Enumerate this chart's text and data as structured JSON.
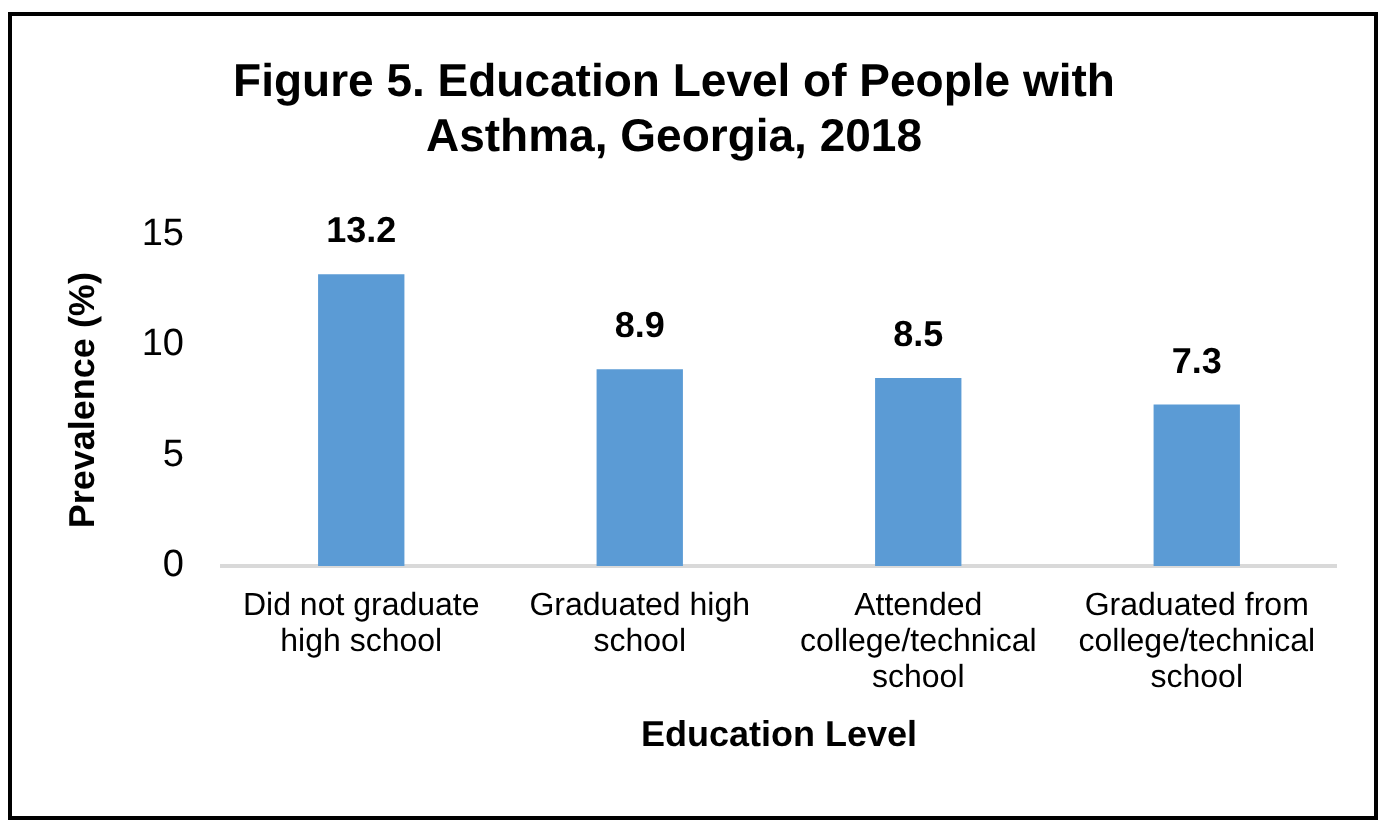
{
  "chart_data": {
    "type": "bar",
    "title": "Figure 5. Education Level of People with Asthma, Georgia, 2018",
    "xlabel": "Education Level",
    "ylabel": "Prevalence (%)",
    "categories": [
      "Did not graduate high school",
      "Graduated high school",
      "Attended college/technical school",
      "Graduated from college/technical school"
    ],
    "values": [
      13.2,
      8.9,
      8.5,
      7.3
    ],
    "color": "#5b9bd5",
    "ylim": [
      0,
      15
    ],
    "yticks": [
      0,
      5,
      10,
      15
    ],
    "data_labels": true,
    "grid": false,
    "legend": false
  }
}
